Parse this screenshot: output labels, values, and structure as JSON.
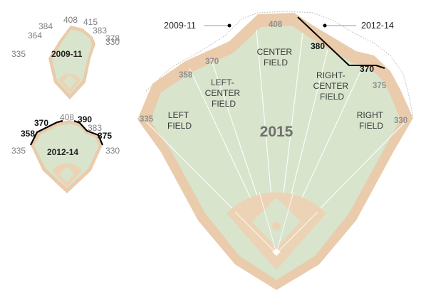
{
  "diagrams": {
    "small_2009": {
      "title": "2009-11",
      "distances": {
        "left": "335",
        "left_center": "364",
        "left_center_deep": "384",
        "center": "408",
        "right_center_deep": "415",
        "right_center": "383",
        "right_a": "378",
        "right_b": "330"
      }
    },
    "small_2012": {
      "title": "2012-14",
      "distances": {
        "left": "335",
        "left_a": "358",
        "left_center": "370",
        "center": "408",
        "right_center": "390",
        "right_center_2": "383",
        "right_a": "375",
        "right": "330"
      }
    },
    "main": {
      "title": "2015",
      "distances": {
        "left": "335",
        "left_a": "358",
        "left_center": "370",
        "center": "408",
        "right_center": "380",
        "right_a": "370",
        "right_b": "375",
        "right": "330"
      },
      "field_labels": {
        "left": [
          "LEFT",
          "FIELD"
        ],
        "left_center": [
          "LEFT-",
          "CENTER",
          "FIELD"
        ],
        "center": [
          "CENTER",
          "FIELD"
        ],
        "right_center": [
          "RIGHT-",
          "CENTER",
          "FIELD"
        ],
        "right": [
          "RIGHT",
          "FIELD"
        ]
      },
      "callouts": {
        "old_wall": "2009-11",
        "mid_wall": "2012-14"
      }
    }
  },
  "colors": {
    "outfield_grass": "#d8e4cc",
    "warning_track": "#eacbab",
    "infield_dirt": "#ecd3b6",
    "foul_lines": "#ffffff",
    "highlight_wall": "#000000"
  }
}
